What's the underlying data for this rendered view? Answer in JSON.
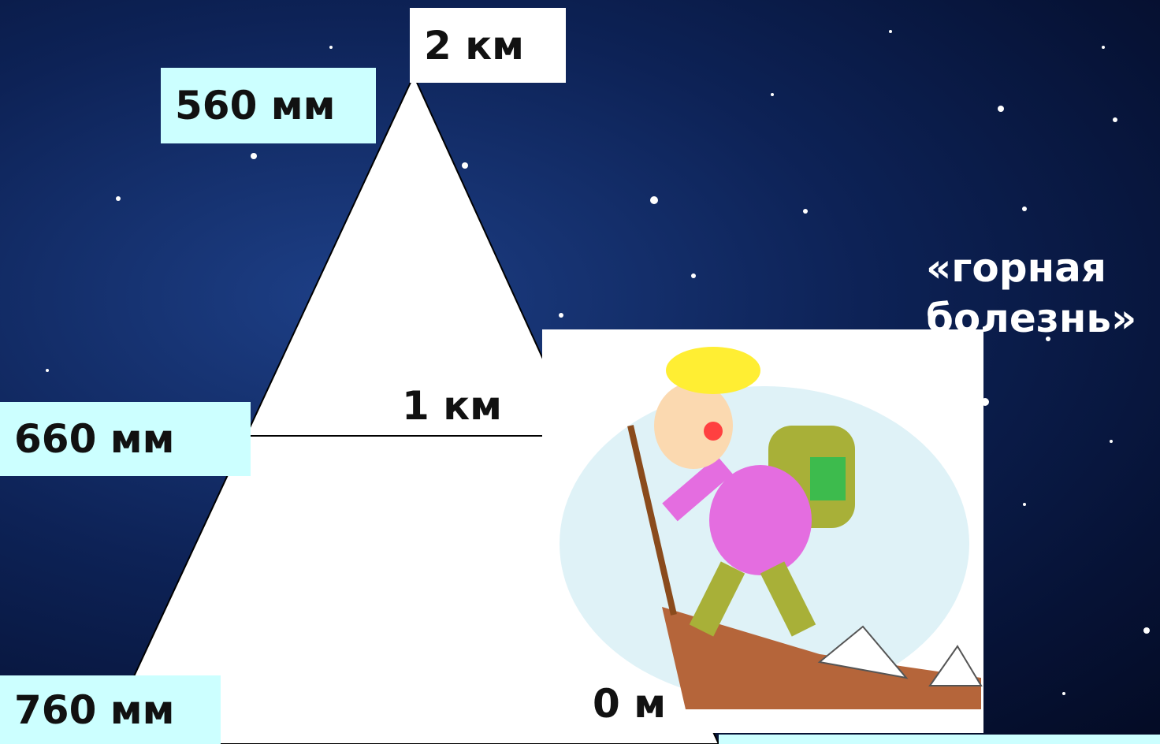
{
  "altitudes": [
    "2 км",
    "1 км",
    "0 м"
  ],
  "pressures": [
    "560 мм",
    "660 мм",
    "760 мм"
  ],
  "caption": "«горная болезнь»"
}
